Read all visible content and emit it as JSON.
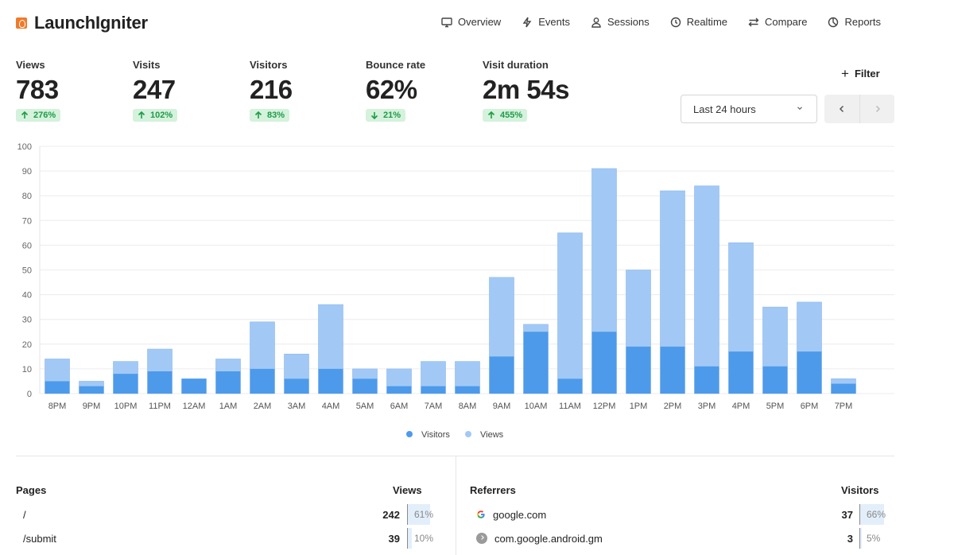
{
  "app": {
    "name": "LaunchIgniter"
  },
  "nav": [
    {
      "label": "Overview",
      "icon": "monitor-icon"
    },
    {
      "label": "Events",
      "icon": "lightning-icon"
    },
    {
      "label": "Sessions",
      "icon": "user-icon"
    },
    {
      "label": "Realtime",
      "icon": "clock-icon"
    },
    {
      "label": "Compare",
      "icon": "arrows-icon"
    },
    {
      "label": "Reports",
      "icon": "pie-icon"
    }
  ],
  "metrics": [
    {
      "label": "Views",
      "value": "783",
      "change": "276%",
      "direction": "up"
    },
    {
      "label": "Visits",
      "value": "247",
      "change": "102%",
      "direction": "up"
    },
    {
      "label": "Visitors",
      "value": "216",
      "change": "83%",
      "direction": "up"
    },
    {
      "label": "Bounce rate",
      "value": "62%",
      "change": "21%",
      "direction": "down"
    },
    {
      "label": "Visit duration",
      "value": "2m 54s",
      "change": "455%",
      "direction": "up"
    }
  ],
  "filter": {
    "label": "Filter"
  },
  "range": {
    "selected": "Last 24 hours"
  },
  "colors": {
    "visitors": "#4d9aea",
    "views": "#a2c9f5",
    "positive": "#1f9b47",
    "positive_bg": "#d4f2dc"
  },
  "chart_data": {
    "type": "bar",
    "stacked": "overlay",
    "categories": [
      "8PM",
      "9PM",
      "10PM",
      "11PM",
      "12AM",
      "1AM",
      "2AM",
      "3AM",
      "4AM",
      "5AM",
      "6AM",
      "7AM",
      "8AM",
      "9AM",
      "10AM",
      "11AM",
      "12PM",
      "1PM",
      "2PM",
      "3PM",
      "4PM",
      "5PM",
      "6PM",
      "7PM"
    ],
    "series": [
      {
        "name": "Visitors",
        "values": [
          5,
          3,
          8,
          9,
          6,
          9,
          10,
          6,
          10,
          6,
          3,
          3,
          3,
          15,
          25,
          6,
          25,
          19,
          19,
          11,
          17,
          11,
          17,
          4
        ]
      },
      {
        "name": "Views",
        "values": [
          14,
          5,
          13,
          18,
          6,
          14,
          29,
          16,
          36,
          10,
          10,
          13,
          13,
          47,
          28,
          65,
          91,
          50,
          82,
          84,
          61,
          35,
          37,
          6
        ]
      }
    ],
    "yticks": [
      0,
      10,
      20,
      30,
      40,
      50,
      60,
      70,
      80,
      90,
      100
    ],
    "ylim": [
      0,
      100
    ],
    "grid": true,
    "legend": "bottom-center"
  },
  "pages": {
    "title": "Pages",
    "metric": "Views",
    "rows": [
      {
        "name": "/",
        "count": "242",
        "pct": "61%",
        "fraction": 0.61
      },
      {
        "name": "/submit",
        "count": "39",
        "pct": "10%",
        "fraction": 0.1
      }
    ]
  },
  "referrers": {
    "title": "Referrers",
    "metric": "Visitors",
    "rows": [
      {
        "name": "google.com",
        "icon": "google-icon",
        "count": "37",
        "pct": "66%",
        "fraction": 0.66
      },
      {
        "name": "com.google.android.gm",
        "icon": "chrome-icon",
        "count": "3",
        "pct": "5%",
        "fraction": 0.05
      }
    ]
  }
}
